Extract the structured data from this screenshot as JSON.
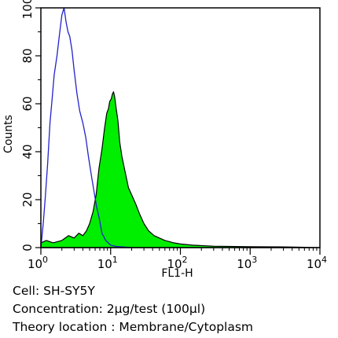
{
  "chart_data": {
    "type": "area",
    "x_scale": "log",
    "xlim": [
      1,
      10000
    ],
    "ylim": [
      0,
      100
    ],
    "xlabel": "FL1-H",
    "ylabel": "Counts",
    "x_ticks": [
      {
        "base": "10",
        "exp": "0",
        "value": 1
      },
      {
        "base": "10",
        "exp": "1",
        "value": 10
      },
      {
        "base": "10",
        "exp": "2",
        "value": 100
      },
      {
        "base": "10",
        "exp": "3",
        "value": 1000
      },
      {
        "base": "10",
        "exp": "4",
        "value": 10000
      }
    ],
    "y_ticks": [
      "0",
      "20",
      "40",
      "60",
      "80",
      "100"
    ],
    "colors": {
      "control": "#2222cc",
      "sample_fill": "#00ee00",
      "sample_edge": "#000000"
    },
    "series": [
      {
        "style": "outline",
        "x": [
          1.0,
          1.08,
          1.15,
          1.25,
          1.35,
          1.45,
          1.55,
          1.7,
          1.85,
          2.0,
          2.15,
          2.3,
          2.45,
          2.6,
          2.8,
          3.0,
          3.3,
          3.6,
          4.0,
          4.4,
          4.8,
          5.3,
          5.8,
          6.3,
          6.9,
          7.5,
          8.5,
          10.0,
          12.0,
          15.0,
          20.0
        ],
        "values": [
          0,
          10,
          20,
          35,
          52,
          62,
          72,
          80,
          89,
          97,
          100,
          94,
          90,
          88,
          82,
          74,
          64,
          57,
          52,
          46,
          38,
          30,
          23,
          17,
          12,
          6,
          3,
          1,
          0.5,
          0.3,
          0
        ]
      },
      {
        "style": "filled",
        "x": [
          1.0,
          1.2,
          1.5,
          2.0,
          2.5,
          3.0,
          3.5,
          4.0,
          4.5,
          5.0,
          5.6,
          6.2,
          6.8,
          7.5,
          8.2,
          8.8,
          9.3,
          9.7,
          10.2,
          10.6,
          11.0,
          11.4,
          12.0,
          12.7,
          13.5,
          14.5,
          16.0,
          18.0,
          20.0,
          23.0,
          26.0,
          30.0,
          35.0,
          42.0,
          50.0,
          60.0,
          70.0,
          80.0,
          100.0,
          150.0,
          300.0,
          1000.0,
          3000.0,
          10000.0
        ],
        "values": [
          2,
          3,
          2,
          3,
          5,
          4,
          6,
          5,
          7,
          10,
          15,
          22,
          33,
          41,
          50,
          56,
          58,
          61,
          62,
          64,
          65,
          63,
          58,
          53,
          44,
          38,
          32,
          25,
          22,
          18,
          14,
          10,
          7,
          5,
          4,
          3,
          2.5,
          2,
          1.5,
          1,
          0.6,
          0.4,
          0.3,
          0
        ]
      }
    ]
  },
  "caption": {
    "cell": "Cell: SH-SY5Y",
    "concentration": "Concentration: 2μg/test (100μl)",
    "location": "Theory location : Membrane/Cytoplasm"
  }
}
